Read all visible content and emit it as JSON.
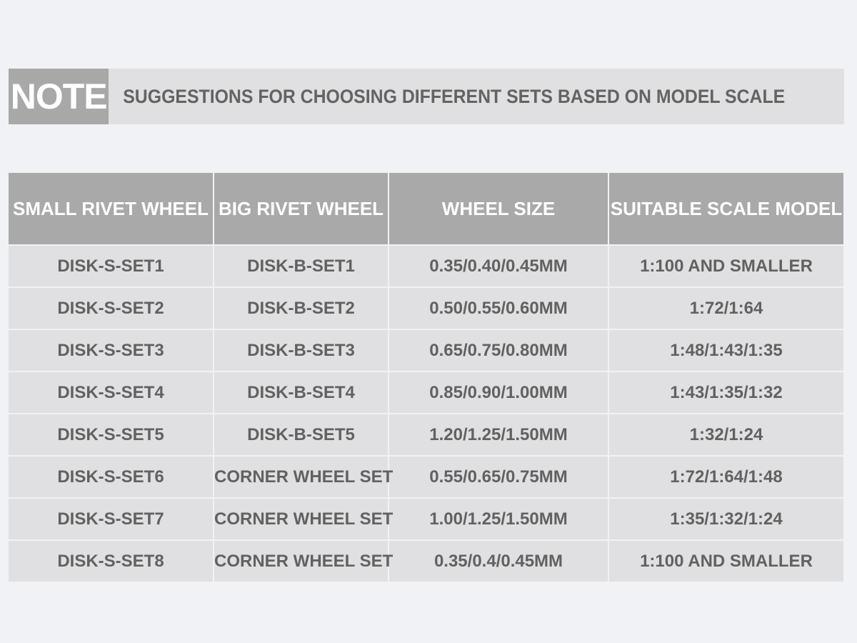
{
  "header": {
    "label": "NOTE",
    "title": "SUGGESTIONS FOR CHOOSING DIFFERENT SETS BASED ON MODEL SCALE"
  },
  "table": {
    "columns": [
      "SMALL RIVET WHEEL",
      "BIG RIVET WHEEL",
      "WHEEL SIZE",
      "SUITABLE SCALE MODEL"
    ],
    "rows": [
      [
        "DISK-S-SET1",
        "DISK-B-SET1",
        "0.35/0.40/0.45MM",
        "1:100 AND SMALLER"
      ],
      [
        "DISK-S-SET2",
        "DISK-B-SET2",
        "0.50/0.55/0.60MM",
        "1:72/1:64"
      ],
      [
        "DISK-S-SET3",
        "DISK-B-SET3",
        "0.65/0.75/0.80MM",
        "1:48/1:43/1:35"
      ],
      [
        "DISK-S-SET4",
        "DISK-B-SET4",
        "0.85/0.90/1.00MM",
        "1:43/1:35/1:32"
      ],
      [
        "DISK-S-SET5",
        "DISK-B-SET5",
        "1.20/1.25/1.50MM",
        "1:32/1:24"
      ],
      [
        "DISK-S-SET6",
        "CORNER WHEEL SET",
        "0.55/0.65/0.75MM",
        "1:72/1:64/1:48"
      ],
      [
        "DISK-S-SET7",
        "CORNER WHEEL SET",
        "1.00/1.25/1.50MM",
        "1:35/1:32/1:24"
      ],
      [
        "DISK-S-SET8",
        "CORNER WHEEL SET",
        "0.35/0.4/0.45MM",
        "1:100 AND SMALLER"
      ]
    ]
  }
}
